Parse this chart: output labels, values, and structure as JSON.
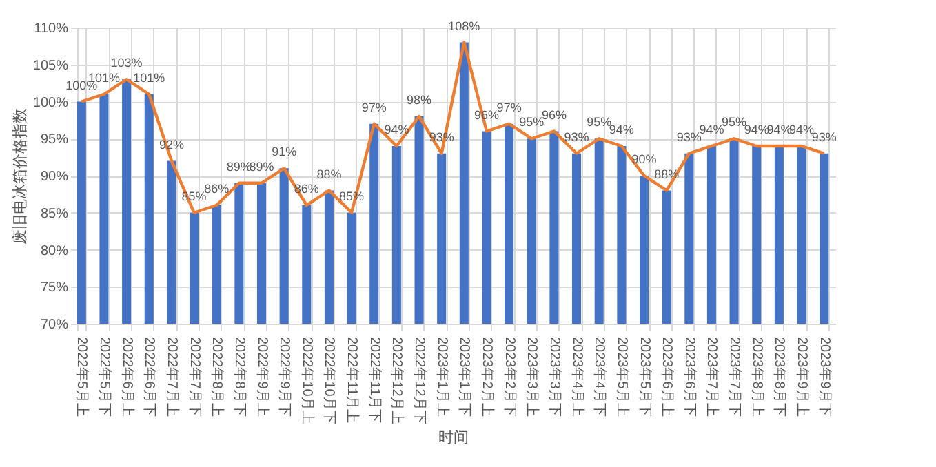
{
  "chart_data": {
    "type": "bar",
    "xlabel": "时间",
    "ylabel": "废旧电冰箱价格指数",
    "categories": [
      "2022年5月上",
      "2022年5月下",
      "2022年6月上",
      "2022年6月下",
      "2022年7月上",
      "2022年7月下",
      "2022年8月上",
      "2022年8月下",
      "2022年9月上",
      "2022年9月下",
      "2022年10月上",
      "2022年10月下",
      "2022年11月上",
      "2022年11月下",
      "2022年12月上",
      "2022年12月下",
      "2023年1月上",
      "2023年1月下",
      "2023年2月上",
      "2023年2月下",
      "2023年3月上",
      "2023年3月下",
      "2023年4月上",
      "2023年4月下",
      "2023年5月上",
      "2023年5月下",
      "2023年6月上",
      "2023年6月下",
      "2023年7月上",
      "2023年7月下",
      "2023年8月上",
      "2023年8月下",
      "2023年9月上",
      "2023年9月下"
    ],
    "series": [
      {
        "color": "#4472c4",
        "values": [
          100,
          101,
          103,
          101,
          92,
          85,
          86,
          89,
          89,
          91,
          86,
          88,
          85,
          97,
          94,
          98,
          93,
          108,
          96,
          97,
          95,
          96,
          93,
          95,
          94,
          90,
          88,
          93,
          94,
          95,
          94,
          94,
          94,
          93
        ]
      },
      {
        "type": "line",
        "color": "#ed7d31",
        "values": [
          100,
          101,
          103,
          101,
          92,
          85,
          86,
          89,
          89,
          91,
          86,
          88,
          85,
          97,
          94,
          98,
          93,
          108,
          96,
          97,
          95,
          96,
          93,
          95,
          94,
          90,
          88,
          93,
          94,
          95,
          94,
          94,
          94,
          93
        ],
        "value_labels": [
          "100%",
          "101%",
          "103%",
          "101%",
          "92%",
          "85%",
          "86%",
          "89%",
          "89%",
          "91%",
          "86%",
          "88%",
          "85%",
          "97%",
          "94%",
          "98%",
          "93%",
          "108%",
          "96%",
          "97%",
          "95%",
          "96%",
          "93%",
          "95%",
          "94%",
          "90%",
          "88%",
          "93%",
          "94%",
          "95%",
          "94%",
          "94%",
          "94%",
          "93%"
        ]
      }
    ],
    "ylim": [
      70,
      110
    ],
    "yticks": [
      {
        "value": 70,
        "label": "70%"
      },
      {
        "value": 75,
        "label": "75%"
      },
      {
        "value": 80,
        "label": "80%"
      },
      {
        "value": 85,
        "label": "85%"
      },
      {
        "value": 90,
        "label": "90%"
      },
      {
        "value": 95,
        "label": "95%"
      },
      {
        "value": 100,
        "label": "100%"
      },
      {
        "value": 105,
        "label": "105%"
      },
      {
        "value": 110,
        "label": "110%"
      }
    ],
    "grid": true,
    "marker": "none",
    "line_style": "solid"
  }
}
